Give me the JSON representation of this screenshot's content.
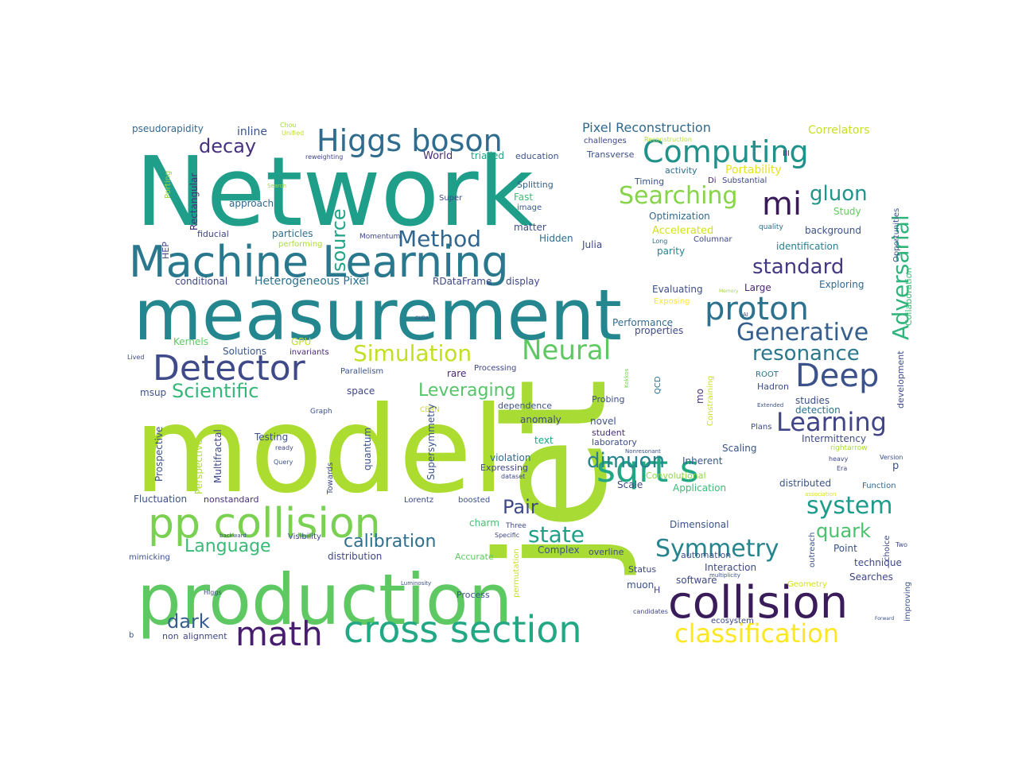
{
  "words": [
    {
      "text": "model",
      "color": "#addc30"
    },
    {
      "text": "jet",
      "color": "#a8db34"
    },
    {
      "text": "Network",
      "color": "#1f9e89"
    },
    {
      "text": "measurement",
      "color": "#24868e"
    },
    {
      "text": "production",
      "color": "#5ec962"
    },
    {
      "text": "Machine Learning",
      "color": "#2a788e"
    },
    {
      "text": "pp collision",
      "color": "#7ad151"
    },
    {
      "text": "collision",
      "color": "#3b1c5a"
    },
    {
      "text": "cross section",
      "color": "#22a884"
    },
    {
      "text": "Higgs boson",
      "color": "#2f6c8e"
    },
    {
      "text": "Computing",
      "color": "#21918c"
    },
    {
      "text": "proton",
      "color": "#2c728e"
    },
    {
      "text": "Detector",
      "color": "#3e4a89"
    },
    {
      "text": "Deep",
      "color": "#3b528b"
    },
    {
      "text": "math",
      "color": "#481d6f"
    },
    {
      "text": "classification",
      "color": "#fde725"
    },
    {
      "text": "sqrt s",
      "color": "#22a785"
    },
    {
      "text": "Neural",
      "color": "#5ec962"
    },
    {
      "text": "Simulation",
      "color": "#c2df23"
    },
    {
      "text": "mi",
      "color": "#3a1a58"
    },
    {
      "text": "Learning",
      "color": "#414487"
    },
    {
      "text": "Generative",
      "color": "#355f8d"
    },
    {
      "text": "Adversarial",
      "color": "#2fb47c"
    },
    {
      "text": "Searching",
      "color": "#86d549"
    },
    {
      "text": "system",
      "color": "#1e9b8a"
    },
    {
      "text": "Symmetry",
      "color": "#25848e"
    },
    {
      "text": "standard",
      "color": "#443a83"
    },
    {
      "text": "resonance",
      "color": "#2a778e"
    },
    {
      "text": "Method",
      "color": "#31668e"
    },
    {
      "text": "decay",
      "color": "#46327e"
    },
    {
      "text": "Scientific",
      "color": "#35b779"
    },
    {
      "text": "state",
      "color": "#1fa088"
    },
    {
      "text": "dimuon",
      "color": "#26828e"
    },
    {
      "text": "gluon",
      "color": "#1f958b"
    },
    {
      "text": "source",
      "color": "#20a386"
    },
    {
      "text": "Leveraging",
      "color": "#54c568"
    },
    {
      "text": "calibration",
      "color": "#2d708e"
    },
    {
      "text": "Language",
      "color": "#3aba76"
    },
    {
      "text": "Pair",
      "color": "#3e4989"
    },
    {
      "text": "quark",
      "color": "#4ac16d"
    },
    {
      "text": "dark",
      "color": "#365c8d"
    },
    {
      "text": "Pixel Reconstruction",
      "color": "#31688e"
    },
    {
      "text": "Heterogeneous Pixel",
      "color": "#2c718e"
    },
    {
      "text": "RDataFrame",
      "color": "#3e4989"
    },
    {
      "text": "display",
      "color": "#3f4788"
    },
    {
      "text": "conditional",
      "color": "#3f4889"
    },
    {
      "text": "pseudorapidity",
      "color": "#31688e"
    },
    {
      "text": "inline",
      "color": "#3a538b"
    },
    {
      "text": "Correlators",
      "color": "#c8e020"
    },
    {
      "text": "Portability",
      "color": "#e5e419"
    },
    {
      "text": "Porting",
      "color": "#99d83d"
    },
    {
      "text": "Unified",
      "color": "#bddf26"
    },
    {
      "text": "Chou",
      "color": "#a2da37"
    },
    {
      "text": "reweighting",
      "color": "#3f4889"
    },
    {
      "text": "Rectangular",
      "color": "#46307e"
    },
    {
      "text": "World",
      "color": "#472d7b"
    },
    {
      "text": "trialled",
      "color": "#20a486"
    },
    {
      "text": "education",
      "color": "#3b528b"
    },
    {
      "text": "challenges",
      "color": "#3f4788"
    },
    {
      "text": "Reconstruction",
      "color": "#b5de2b"
    },
    {
      "text": "Transverse",
      "color": "#3c4f8a"
    },
    {
      "text": "III",
      "color": "#482475"
    },
    {
      "text": "Di",
      "color": "#482475"
    },
    {
      "text": "Substantial",
      "color": "#3f4788"
    },
    {
      "text": "activity",
      "color": "#2e6f8e"
    },
    {
      "text": "Timing",
      "color": "#3b518b"
    },
    {
      "text": "Splitting",
      "color": "#33628d"
    },
    {
      "text": "image",
      "color": "#38588c"
    },
    {
      "text": "Super",
      "color": "#3d4d8a"
    },
    {
      "text": "Search",
      "color": "#9fda3a"
    },
    {
      "text": "approach",
      "color": "#31688e"
    },
    {
      "text": "Fast",
      "color": "#3dbc74"
    },
    {
      "text": "Optimization",
      "color": "#306a8e"
    },
    {
      "text": "Study",
      "color": "#60ca60"
    },
    {
      "text": "HEP",
      "color": "#414287"
    },
    {
      "text": "fiducial",
      "color": "#3f4788"
    },
    {
      "text": "Momentum",
      "color": "#3f4788"
    },
    {
      "text": "particles",
      "color": "#2e6f8e"
    },
    {
      "text": "performing",
      "color": "#addc30"
    },
    {
      "text": "matter",
      "color": "#3c4f8a"
    },
    {
      "text": "Hidden",
      "color": "#2f6b8e"
    },
    {
      "text": "Accelerated",
      "color": "#d2e21b"
    },
    {
      "text": "Julia",
      "color": "#3f4788"
    },
    {
      "text": "Long",
      "color": "#2e6f8e"
    },
    {
      "text": "Columnar",
      "color": "#3f4889"
    },
    {
      "text": "background",
      "color": "#3b528b"
    },
    {
      "text": "identification",
      "color": "#27808e"
    },
    {
      "text": "parity",
      "color": "#25848e"
    },
    {
      "text": "quality",
      "color": "#2e6e8e"
    },
    {
      "text": "Opportunities",
      "color": "#3b528b"
    },
    {
      "text": "Collaboration",
      "color": "#3aba76"
    },
    {
      "text": "Evaluating",
      "color": "#3d4e8a"
    },
    {
      "text": "Large",
      "color": "#482677"
    },
    {
      "text": "Exploring",
      "color": "#31678e"
    },
    {
      "text": "Memory",
      "color": "#a5db36"
    },
    {
      "text": "Exposing",
      "color": "#fde725"
    },
    {
      "text": "AI",
      "color": "#414487"
    },
    {
      "text": "Performance",
      "color": "#2f6c8e"
    },
    {
      "text": "properties",
      "color": "#3e4a89"
    },
    {
      "text": "CUDA",
      "color": "#3f4889"
    },
    {
      "text": "Kernels",
      "color": "#5ec962"
    },
    {
      "text": "GPU",
      "color": "#c2df23"
    },
    {
      "text": "Solutions",
      "color": "#38588c"
    },
    {
      "text": "invariants",
      "color": "#482878"
    },
    {
      "text": "Lived",
      "color": "#3e4989"
    },
    {
      "text": "Parallelism",
      "color": "#3b518b"
    },
    {
      "text": "Processing",
      "color": "#3f4788"
    },
    {
      "text": "rare",
      "color": "#482878"
    },
    {
      "text": "ROOT",
      "color": "#2d708e"
    },
    {
      "text": "Hadron",
      "color": "#3c4f8a"
    },
    {
      "text": "development",
      "color": "#3e4a89"
    },
    {
      "text": "QCD",
      "color": "#2c718e"
    },
    {
      "text": "Kokkos",
      "color": "#7ad151"
    },
    {
      "text": "mo",
      "color": "#46307e"
    },
    {
      "text": "Constraining",
      "color": "#cae11f"
    },
    {
      "text": "studies",
      "color": "#3c4f8a"
    },
    {
      "text": "detection",
      "color": "#2c718e"
    },
    {
      "text": "msup",
      "color": "#3b528b"
    },
    {
      "text": "space",
      "color": "#3f4788"
    },
    {
      "text": "Probing",
      "color": "#3c4f8a"
    },
    {
      "text": "Extended",
      "color": "#3b528b"
    },
    {
      "text": "Graph",
      "color": "#3b528b"
    },
    {
      "text": "dependence",
      "color": "#3b528b"
    },
    {
      "text": "CERN",
      "color": "#cde11d"
    },
    {
      "text": "anomaly",
      "color": "#3e4989"
    },
    {
      "text": "novel",
      "color": "#3b528b"
    },
    {
      "text": "student",
      "color": "#46327e"
    },
    {
      "text": "laboratory",
      "color": "#3d4e8a"
    },
    {
      "text": "Plans",
      "color": "#3f4788"
    },
    {
      "text": "Multifractal",
      "color": "#3f4889"
    },
    {
      "text": "Testing",
      "color": "#3b528b"
    },
    {
      "text": "ready",
      "color": "#3f4889"
    },
    {
      "text": "Prospective",
      "color": "#3b528b"
    },
    {
      "text": "Perspective",
      "color": "#addc30"
    },
    {
      "text": "Query",
      "color": "#3b528b"
    },
    {
      "text": "Towards",
      "color": "#3f4788"
    },
    {
      "text": "quantum",
      "color": "#3b528b"
    },
    {
      "text": "text",
      "color": "#20a386"
    },
    {
      "text": "Supersymmetry",
      "color": "#3b528b"
    },
    {
      "text": "violation",
      "color": "#306a8e"
    },
    {
      "text": "Expressing",
      "color": "#3f4788"
    },
    {
      "text": "dataset",
      "color": "#3f4889"
    },
    {
      "text": "Scaling",
      "color": "#3b528b"
    },
    {
      "text": "Intermittency",
      "color": "#3e4a89"
    },
    {
      "text": "Nonresonant",
      "color": "#3b528b"
    },
    {
      "text": "rightarrow",
      "color": "#a8db34"
    },
    {
      "text": "Inherent",
      "color": "#38588c"
    },
    {
      "text": "heavy",
      "color": "#3f4889"
    },
    {
      "text": "Version",
      "color": "#3b528b"
    },
    {
      "text": "Era",
      "color": "#3e4989"
    },
    {
      "text": "Convolutional",
      "color": "#8fd744"
    },
    {
      "text": "Scale",
      "color": "#3f4788"
    },
    {
      "text": "Application",
      "color": "#3dbc74"
    },
    {
      "text": "distributed",
      "color": "#3b528b"
    },
    {
      "text": "Function",
      "color": "#31688e"
    },
    {
      "text": "association",
      "color": "#d8e219"
    },
    {
      "text": "Fluctuation",
      "color": "#3b528b"
    },
    {
      "text": "nonstandard",
      "color": "#46317e"
    },
    {
      "text": "Lorentz",
      "color": "#3e4989"
    },
    {
      "text": "boosted",
      "color": "#3b528b"
    },
    {
      "text": "charm",
      "color": "#44bf70"
    },
    {
      "text": "Three",
      "color": "#3f4889"
    },
    {
      "text": "Specific",
      "color": "#3f4889"
    },
    {
      "text": "backward",
      "color": "#3b528b"
    },
    {
      "text": "Visibility",
      "color": "#3f4889"
    },
    {
      "text": "distribution",
      "color": "#3f4889"
    },
    {
      "text": "Accurate",
      "color": "#5ec962"
    },
    {
      "text": "Complex",
      "color": "#3b528b"
    },
    {
      "text": "overline",
      "color": "#3f4788"
    },
    {
      "text": "Dimensional",
      "color": "#3b528b"
    },
    {
      "text": "automation",
      "color": "#3b528b"
    },
    {
      "text": "outreach",
      "color": "#3b528b"
    },
    {
      "text": "choice",
      "color": "#3f4788"
    },
    {
      "text": "Two",
      "color": "#3f4889"
    },
    {
      "text": "Point",
      "color": "#3b528b"
    },
    {
      "text": "technique",
      "color": "#3f4788"
    },
    {
      "text": "improving",
      "color": "#3b528b"
    },
    {
      "text": "Searches",
      "color": "#3f4788"
    },
    {
      "text": "Interaction",
      "color": "#3f4889"
    },
    {
      "text": "multiplicity",
      "color": "#3b528b"
    },
    {
      "text": "Status",
      "color": "#3f4788"
    },
    {
      "text": "software",
      "color": "#3f4889"
    },
    {
      "text": "muon",
      "color": "#3b528b"
    },
    {
      "text": "H",
      "color": "#3f4889"
    },
    {
      "text": "Geometry",
      "color": "#d2e21b"
    },
    {
      "text": "Forward",
      "color": "#3b528b"
    },
    {
      "text": "mimicking",
      "color": "#3b528b"
    },
    {
      "text": "Higgs",
      "color": "#3f4788"
    },
    {
      "text": "Luminosity",
      "color": "#3b528b"
    },
    {
      "text": "Process",
      "color": "#3b528b"
    },
    {
      "text": "permutation",
      "color": "#cae11f"
    },
    {
      "text": "candidates",
      "color": "#3f4788"
    },
    {
      "text": "ecosystem",
      "color": "#3f4889"
    },
    {
      "text": "b",
      "color": "#3b528b"
    },
    {
      "text": "non",
      "color": "#3f4889"
    },
    {
      "text": "alignment",
      "color": "#3f4788"
    },
    {
      "text": "p",
      "color": "#3b528b"
    }
  ]
}
